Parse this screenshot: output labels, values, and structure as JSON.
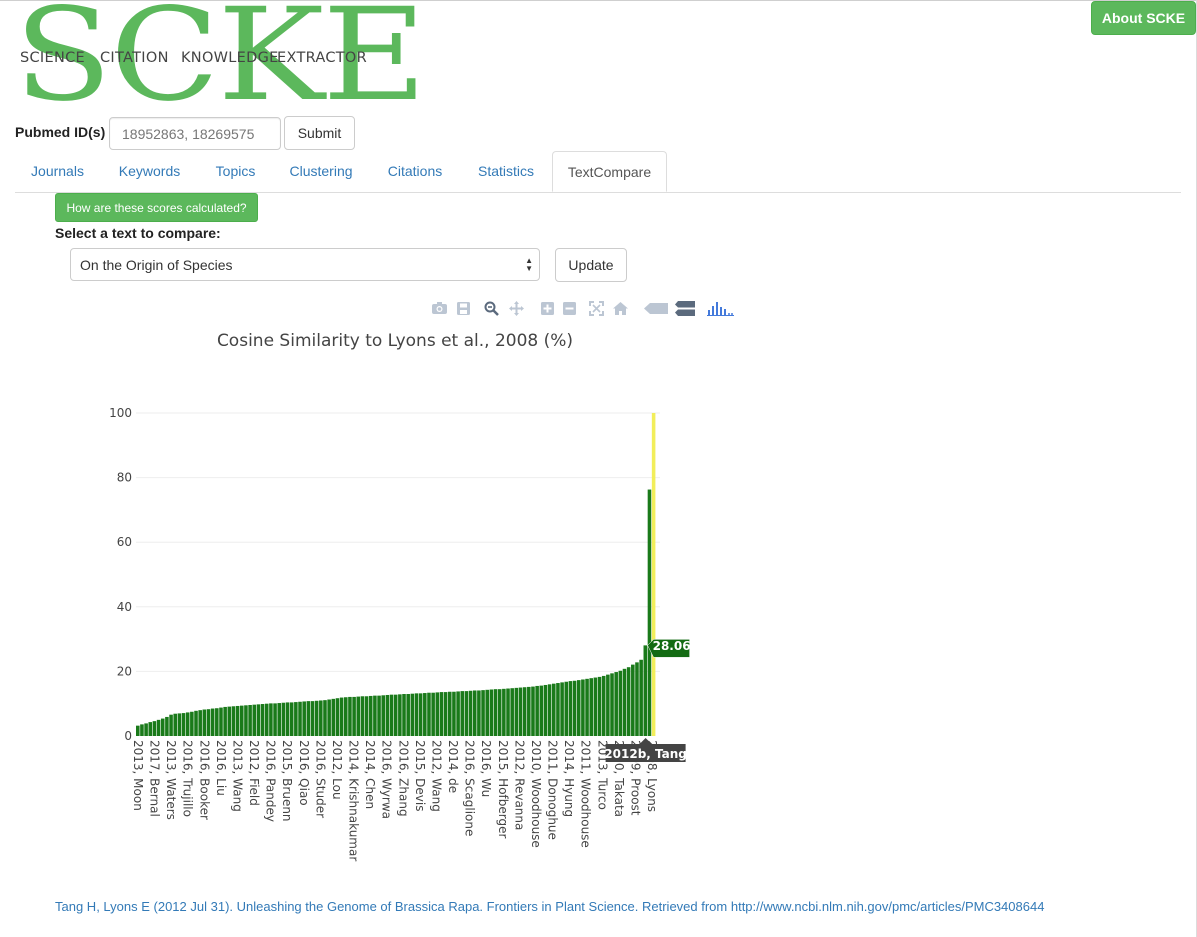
{
  "logo": {
    "letters": "SCKE",
    "words": [
      "SCIENCE",
      "CITATION",
      "KNOWLEDGE",
      "EXTRACTOR"
    ]
  },
  "header": {
    "about_label": "About SCKE"
  },
  "search": {
    "label": "Pubmed ID(s)",
    "placeholder": "18952863, 18269575",
    "submit_label": "Submit"
  },
  "tabs": [
    {
      "label": "Journals",
      "active": false
    },
    {
      "label": "Keywords",
      "active": false
    },
    {
      "label": "Topics",
      "active": false
    },
    {
      "label": "Clustering",
      "active": false
    },
    {
      "label": "Citations",
      "active": false
    },
    {
      "label": "Statistics",
      "active": false
    },
    {
      "label": "TextCompare",
      "active": true
    }
  ],
  "textcompare": {
    "how_label": "How are these scores calculated?",
    "select_label": "Select a text to compare:",
    "selected_text": "On the Origin of Species",
    "update_label": "Update"
  },
  "modebar": {
    "icons": [
      "camera-icon",
      "save-icon",
      "zoom-icon",
      "pan-icon",
      "zoom-in-icon",
      "zoom-out-icon",
      "autoscale-icon",
      "reset-axes-icon",
      "hover-closest-icon",
      "hover-compare-icon",
      "plotly-logo-icon"
    ]
  },
  "chart_data": {
    "type": "bar",
    "title": "Cosine Similarity to Lyons et al., 2008 (%)",
    "ylim": [
      0,
      100
    ],
    "yticks": [
      0,
      20,
      40,
      60,
      80,
      100
    ],
    "grid": true,
    "bar_color": "#1a7a1a",
    "highlight_color": "#f2ee5a",
    "values": [
      3.2,
      3.6,
      3.9,
      4.3,
      4.6,
      5.0,
      5.4,
      5.9,
      6.6,
      6.9,
      7.0,
      7.1,
      7.3,
      7.5,
      7.8,
      8.0,
      8.2,
      8.3,
      8.5,
      8.6,
      8.8,
      9.0,
      9.1,
      9.2,
      9.3,
      9.4,
      9.5,
      9.6,
      9.7,
      9.8,
      9.9,
      10.0,
      10.1,
      10.1,
      10.2,
      10.3,
      10.4,
      10.4,
      10.5,
      10.6,
      10.7,
      10.8,
      10.8,
      10.9,
      11.0,
      11.1,
      11.3,
      11.5,
      11.7,
      11.9,
      12.0,
      12.1,
      12.1,
      12.2,
      12.3,
      12.3,
      12.4,
      12.5,
      12.5,
      12.6,
      12.7,
      12.8,
      12.8,
      12.9,
      13.0,
      13.0,
      13.1,
      13.2,
      13.2,
      13.3,
      13.4,
      13.4,
      13.5,
      13.6,
      13.6,
      13.7,
      13.7,
      13.8,
      13.9,
      13.9,
      14.0,
      14.1,
      14.1,
      14.2,
      14.3,
      14.4,
      14.5,
      14.5,
      14.6,
      14.7,
      14.8,
      14.9,
      15.0,
      15.1,
      15.2,
      15.3,
      15.5,
      15.6,
      15.8,
      16.0,
      16.2,
      16.4,
      16.6,
      16.8,
      17.0,
      17.1,
      17.3,
      17.5,
      17.7,
      17.9,
      18.1,
      18.3,
      18.6,
      19.0,
      19.4,
      19.8,
      20.2,
      20.8,
      21.3,
      22.1,
      22.8,
      23.6,
      28.06,
      76.3,
      100
    ],
    "highlight_index": 124,
    "hover": {
      "index": 122,
      "value_label": "28.06",
      "category_label": "2012b, Tang"
    },
    "tick_labels": [
      {
        "index": 0,
        "label": "2013, Moon"
      },
      {
        "index": 5,
        "label": "2017, Bernal"
      },
      {
        "index": 10,
        "label": "2013, Waters"
      },
      {
        "index": 15,
        "label": "2016, Trujillo"
      },
      {
        "index": 20,
        "label": "2016, Booker"
      },
      {
        "index": 25,
        "label": "2016, Liu"
      },
      {
        "index": 30,
        "label": "2013, Wang"
      },
      {
        "index": 35,
        "label": "2012, Field"
      },
      {
        "index": 40,
        "label": "2016, Pandey"
      },
      {
        "index": 45,
        "label": "2015, Bruenn"
      },
      {
        "index": 50,
        "label": "2016, Qiao"
      },
      {
        "index": 55,
        "label": "2016, Studer"
      },
      {
        "index": 60,
        "label": "2012, Lou"
      },
      {
        "index": 65,
        "label": "2014, Krishnakumar"
      },
      {
        "index": 70,
        "label": "2014, Chen"
      },
      {
        "index": 75,
        "label": "2016, Wyrwa"
      },
      {
        "index": 80,
        "label": "2016, Zhang"
      },
      {
        "index": 85,
        "label": "2015, Devis"
      },
      {
        "index": 90,
        "label": "2012, Wang"
      },
      {
        "index": 95,
        "label": "2014, de"
      },
      {
        "index": 100,
        "label": "2016, Scaglione"
      },
      {
        "index": 105,
        "label": "2016, Wu"
      },
      {
        "index": 110,
        "label": "2015, Hofberger"
      },
      {
        "index": 115,
        "label": "2012, Revanna"
      },
      {
        "index": 120,
        "label": "2010, Woodhouse"
      },
      {
        "index": 125,
        "label": "2011, Donoghue"
      },
      {
        "index": 130,
        "label": "2014, Hyung"
      },
      {
        "index": 135,
        "label": "2011, Woodhouse"
      },
      {
        "index": 140,
        "label": "2013, Turco"
      },
      {
        "index": 145,
        "label": "2010, Takata"
      },
      {
        "index": 150,
        "label": "2009, Proost"
      },
      {
        "index": 155,
        "label": "2008, Lyons"
      }
    ],
    "xaxis_note": "tick label indices are category positions along x (0..155) mapped onto the 125 bars"
  },
  "footer": {
    "citation": "Tang H, Lyons E (2012 Jul 31). Unleashing the Genome of Brassica Rapa. Frontiers in Plant Science. Retrieved from http://www.ncbi.nlm.nih.gov/pmc/articles/PMC3408644"
  }
}
